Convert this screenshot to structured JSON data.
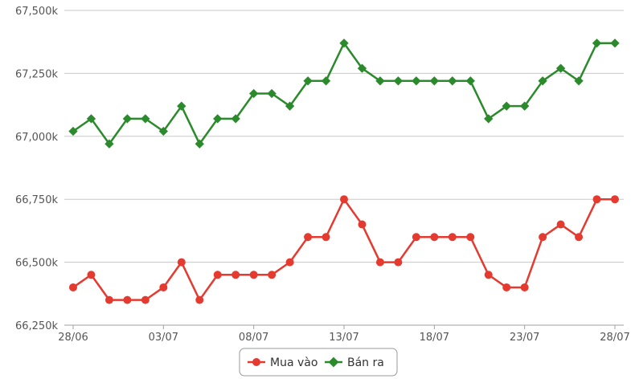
{
  "chart_data": {
    "type": "line",
    "x": [
      "28/06",
      "29/06",
      "30/06",
      "01/07",
      "02/07",
      "03/07",
      "04/07",
      "05/07",
      "06/07",
      "07/07",
      "08/07",
      "09/07",
      "10/07",
      "11/07",
      "12/07",
      "13/07",
      "14/07",
      "15/07",
      "16/07",
      "17/07",
      "18/07",
      "19/07",
      "20/07",
      "21/07",
      "22/07",
      "23/07",
      "24/07",
      "25/07",
      "26/07",
      "27/07",
      "28/07"
    ],
    "xtick_labels": [
      "28/06",
      "03/07",
      "08/07",
      "13/07",
      "18/07",
      "23/07",
      "28/07"
    ],
    "ylim": [
      66250,
      67500
    ],
    "yticks": [
      66250,
      66500,
      66750,
      67000,
      67250,
      67500
    ],
    "ytick_labels": [
      "66,250k",
      "66,500k",
      "66,750k",
      "67,000k",
      "67,250k",
      "67,500k"
    ],
    "grid": true,
    "legend_position": "bottom-center",
    "series": [
      {
        "name": "Mua vào",
        "color": "#e53a2f",
        "marker": "circle",
        "values": [
          66400,
          66450,
          66350,
          66350,
          66350,
          66400,
          66500,
          66350,
          66450,
          66450,
          66450,
          66450,
          66500,
          66600,
          66600,
          66750,
          66650,
          66500,
          66500,
          66600,
          66600,
          66600,
          66600,
          66450,
          66400,
          66400,
          66600,
          66650,
          66600,
          66750,
          66750
        ]
      },
      {
        "name": "Bán ra",
        "color": "#2b8a2b",
        "marker": "diamond",
        "values": [
          67020,
          67070,
          66970,
          67070,
          67070,
          67020,
          67120,
          66970,
          67070,
          67070,
          67170,
          67170,
          67120,
          67220,
          67220,
          67370,
          67270,
          67220,
          67220,
          67220,
          67220,
          67220,
          67220,
          67070,
          67120,
          67120,
          67220,
          67270,
          67220,
          67370,
          67370
        ]
      }
    ]
  }
}
